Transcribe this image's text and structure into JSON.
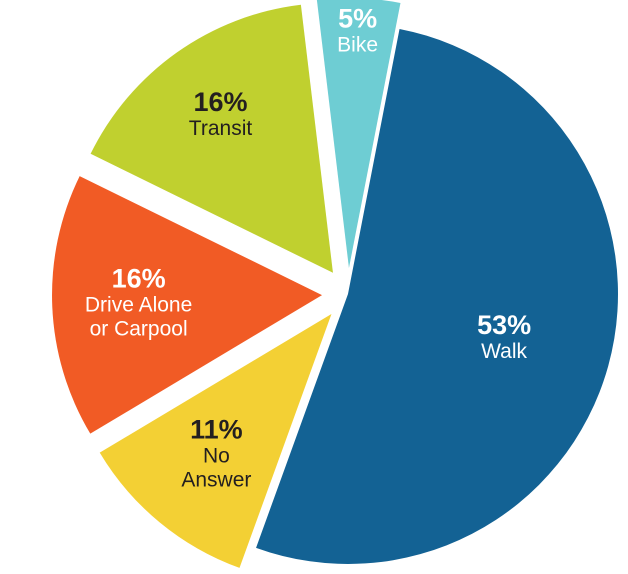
{
  "chart_data": {
    "type": "pie",
    "title": "",
    "start_angle_deg": 11,
    "slices": [
      {
        "category": "Walk",
        "value": 53,
        "value_label": "53%",
        "label_lines": [
          "Walk"
        ],
        "color": "#136294",
        "label_color": "#ffffff",
        "exploded": false
      },
      {
        "category": "No Answer",
        "value": 11,
        "value_label": "11%",
        "label_lines": [
          "No",
          "Answer"
        ],
        "color": "#f3d034",
        "label_color": "#231f20",
        "exploded": true
      },
      {
        "category": "Drive Alone or Carpool",
        "value": 16,
        "value_label": "16%",
        "label_lines": [
          "Drive Alone",
          "or Carpool"
        ],
        "color": "#f15b25",
        "label_color": "#ffffff",
        "exploded": true
      },
      {
        "category": "Transit",
        "value": 16,
        "value_label": "16%",
        "label_lines": [
          "Transit"
        ],
        "color": "#c0d02f",
        "label_color": "#231f20",
        "exploded": true
      },
      {
        "category": "Bike",
        "value": 5,
        "value_label": "5%",
        "label_lines": [
          "Bike"
        ],
        "color": "#6ecdd3",
        "label_color": "#ffffff",
        "exploded": true
      }
    ]
  }
}
